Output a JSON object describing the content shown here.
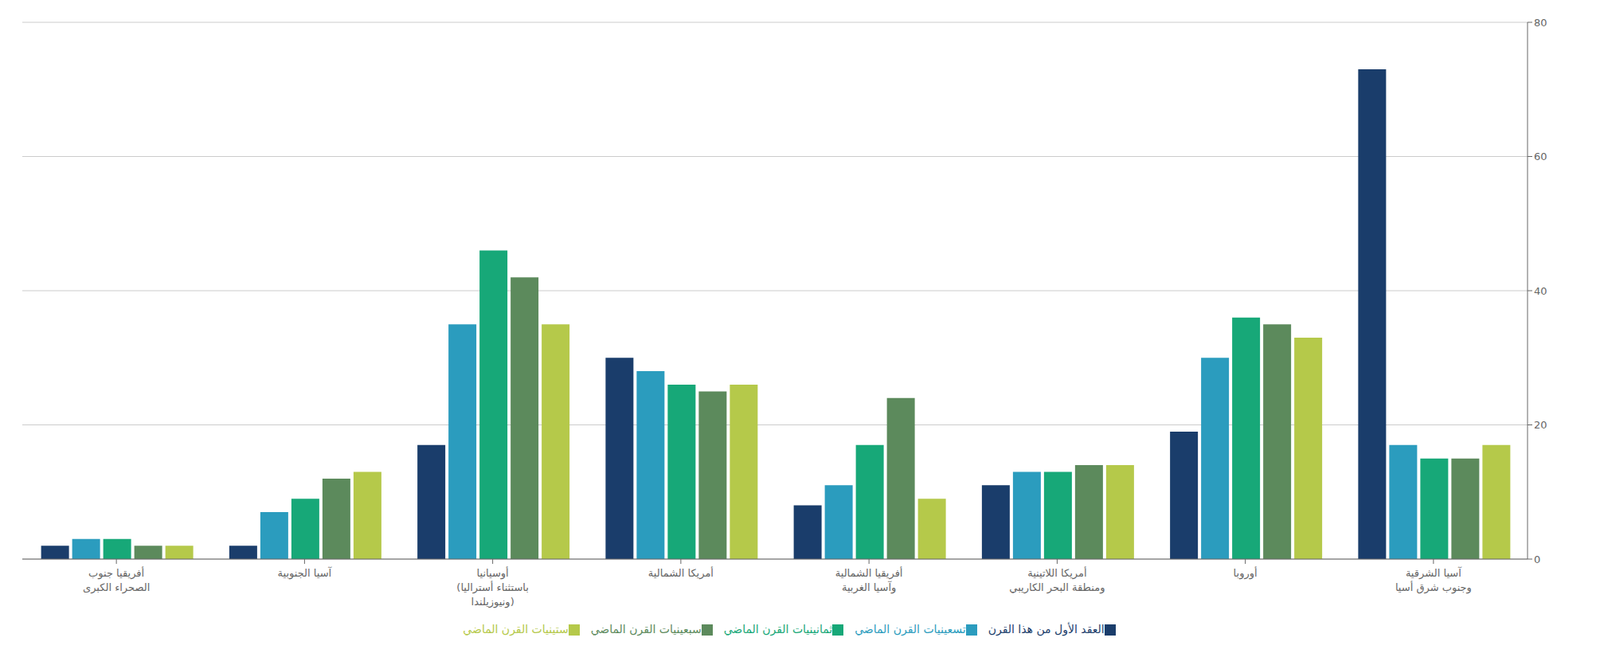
{
  "chart_data": {
    "type": "bar",
    "categories": [
      "أفريقيا جنوب\nالصحراء الكبرى",
      "آسيا الجنوبية",
      "أوسيانيا\n(باستثناء أستراليا\nونيوزيلندا)",
      "أمريكا الشمالية",
      "أفريقيا الشمالية\nوآسيا الغربية",
      "أمريكا اللاتينية\nومنطقة البحر الكاريبي",
      "أوروبا",
      "آسيا الشرقية\nوجنوب شرق أسيا"
    ],
    "series": [
      {
        "name": "العقد الأول من هذا القرن",
        "color": "#1a3d6b",
        "values": [
          2,
          2,
          17,
          30,
          8,
          11,
          19,
          73
        ]
      },
      {
        "name": "تسعينيات القرن الماضي",
        "color": "#2b9cbe",
        "values": [
          3,
          7,
          35,
          28,
          11,
          13,
          30,
          17
        ]
      },
      {
        "name": "ثمانينيات القرن الماضي",
        "color": "#17a878",
        "values": [
          3,
          9,
          46,
          26,
          17,
          13,
          36,
          15
        ]
      },
      {
        "name": "سبعينيات القرن الماضي",
        "color": "#5c8a5c",
        "values": [
          2,
          12,
          42,
          25,
          24,
          14,
          35,
          15
        ]
      },
      {
        "name": "ستينيات القرن الماضي",
        "color": "#b5c94a",
        "values": [
          2,
          13,
          35,
          26,
          9,
          14,
          33,
          17
        ]
      }
    ],
    "ylim": [
      0,
      80
    ],
    "yticks": [
      0,
      20,
      40,
      60,
      80
    ],
    "grid": true,
    "legend": "bottom"
  }
}
